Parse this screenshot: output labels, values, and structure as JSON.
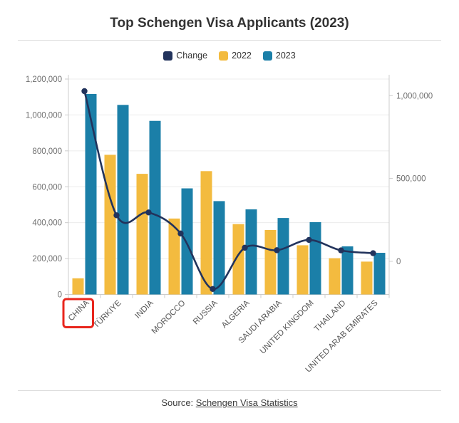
{
  "title": "Top Schengen Visa Applicants (2023)",
  "legend": [
    {
      "label": "Change",
      "color": "#22335C"
    },
    {
      "label": "2022",
      "color": "#F3BB3F"
    },
    {
      "label": "2023",
      "color": "#1B7FA8"
    }
  ],
  "source": {
    "prefix": "Source: ",
    "link_text": "Schengen Visa Statistics"
  },
  "chart_data": {
    "type": "bar",
    "subtype": "grouped-bar-with-line",
    "title": "Top Schengen Visa Applicants (2023)",
    "xlabel": "",
    "ylabel": "",
    "grid": "horizontal",
    "legend_position": "top",
    "categories": [
      "CHINA",
      "TÜRKIYE",
      "INDIA",
      "MOROCCO",
      "RUSSIA",
      "ALGERIA",
      "SAUDI ARABIA",
      "UNITED KINGDOM",
      "THAILAND",
      "UNITED ARAB EMIRATES"
    ],
    "series": [
      {
        "name": "2022",
        "type": "bar",
        "axis": "left",
        "color": "#F3BB3F",
        "values": [
          90000,
          778000,
          672000,
          423000,
          687000,
          392000,
          359000,
          274000,
          202000,
          183000
        ]
      },
      {
        "name": "2023",
        "type": "bar",
        "axis": "left",
        "color": "#1B7FA8",
        "values": [
          1117000,
          1056000,
          967000,
          591000,
          520000,
          474000,
          426000,
          403000,
          268000,
          232000
        ]
      },
      {
        "name": "Change",
        "type": "line",
        "axis": "right",
        "color": "#22335C",
        "values": [
          1027000,
          278000,
          295000,
          168000,
          -167000,
          82000,
          67000,
          129000,
          66000,
          49000
        ]
      }
    ],
    "left_axis": {
      "min": 0,
      "max": 1200000,
      "ticks": [
        0,
        200000,
        400000,
        600000,
        800000,
        1000000,
        1200000
      ],
      "tick_labels": [
        "0",
        "200,000",
        "400,000",
        "600,000",
        "800,000",
        "1,000,000",
        "1,200,000"
      ]
    },
    "right_axis": {
      "min": -200000,
      "max": 1100000,
      "ticks": [
        0,
        500000,
        1000000
      ],
      "tick_labels": [
        "0",
        "500,000",
        "1,000,000"
      ]
    },
    "highlight": {
      "category": "CHINA",
      "color": "#E8261D",
      "shape": "red-box-around-x-label"
    }
  }
}
